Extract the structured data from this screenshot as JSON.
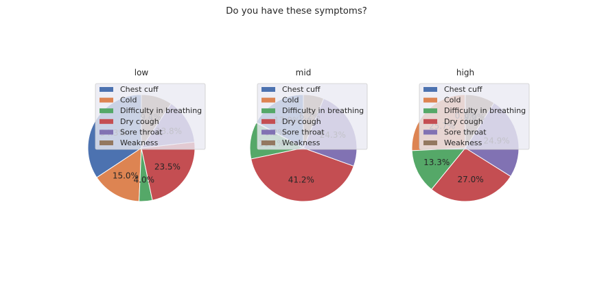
{
  "chart_data": {
    "type": "pie",
    "title": "Do you have these symptoms?",
    "legend_placement": "top",
    "categories": [
      "Chest cuff",
      "Cold",
      "Difficulty in breathing",
      "Dry cough",
      "Sore throat",
      "Weakness"
    ],
    "colors": [
      "#4c72b0",
      "#dd8452",
      "#55a868",
      "#c44e52",
      "#8172b3",
      "#937860"
    ],
    "charts": [
      {
        "subtitle": "low",
        "values": [
          34.3,
          15.0,
          4.0,
          23.5,
          13.8,
          9.4
        ],
        "labels": [
          "34.3%",
          "15.0%",
          "4.0%",
          "23.5%",
          "13.8%",
          "9.4%"
        ]
      },
      {
        "subtitle": "mid",
        "values": [
          17.0,
          0.2,
          11.1,
          41.2,
          24.3,
          6.2
        ],
        "labels": [
          "17.0%",
          "0.2%",
          "11.1%",
          "41.2%",
          "24.3%",
          "6.2%"
        ]
      },
      {
        "subtitle": "high",
        "values": [
          0.1,
          25.7,
          13.3,
          27.0,
          24.9,
          9.0
        ],
        "labels": [
          "0.1%",
          "25.7%",
          "13.3%",
          "27.0%",
          "24.9%",
          "9.0%"
        ]
      }
    ]
  }
}
